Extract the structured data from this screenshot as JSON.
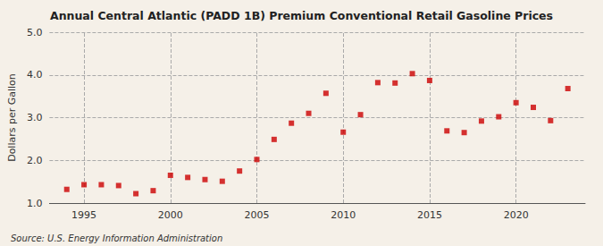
{
  "chart_data": {
    "type": "scatter",
    "title": "Annual Central Atlantic (PADD 1B) Premium Conventional Retail Gasoline Prices",
    "ylabel": "Dollars per Gallon",
    "annotations": [
      "Source: U.S. Energy Information Administration"
    ],
    "x": [
      1994,
      1995,
      1996,
      1997,
      1998,
      1999,
      2000,
      2001,
      2002,
      2003,
      2004,
      2005,
      2006,
      2007,
      2008,
      2009,
      2010,
      2011,
      2012,
      2013,
      2014,
      2015,
      2016,
      2017,
      2018,
      2019,
      2020,
      2021,
      2022,
      2023
    ],
    "values": [
      1.32,
      1.43,
      1.43,
      1.41,
      1.22,
      1.29,
      1.65,
      1.6,
      1.55,
      1.51,
      1.75,
      2.02,
      2.49,
      2.87,
      3.1,
      3.57,
      2.66,
      3.07,
      3.82,
      3.81,
      4.03,
      3.87,
      2.69,
      2.65,
      2.92,
      3.02,
      3.35,
      3.24,
      2.93,
      3.68
    ],
    "color": "#cc0000",
    "marker": "square",
    "xlim": [
      1993,
      2024
    ],
    "xticks": [
      1995,
      2000,
      2005,
      2010,
      2015,
      2020
    ],
    "ylim": [
      1.0,
      5.0
    ],
    "yticks": [
      {
        "value": 1.0,
        "label": "1.0"
      },
      {
        "value": 2.0,
        "label": "2.0"
      },
      {
        "value": 3.0,
        "label": "3.0"
      },
      {
        "value": 4.0,
        "label": "4.0"
      },
      {
        "value": 5.0,
        "label": "5.0"
      }
    ],
    "grid": true
  }
}
